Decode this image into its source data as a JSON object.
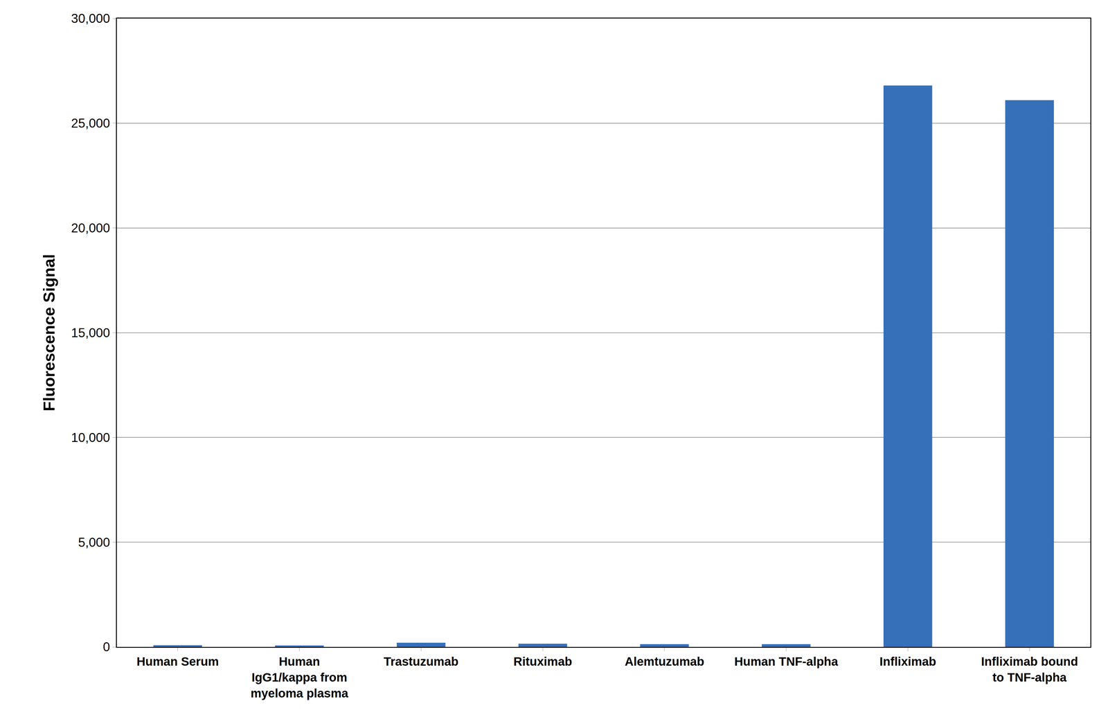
{
  "chart_data": {
    "type": "bar",
    "y_label": "Fluorescence Signal",
    "categories": [
      "Human Serum",
      "Human\nIgG1/kappa from\nmyeloma plasma",
      "Trastuzumab",
      "Rituximab",
      "Alemtuzumab",
      "Human TNF-alpha",
      "Infliximab",
      "Infliximab bound\nto TNF-alpha"
    ],
    "values": [
      80,
      70,
      200,
      150,
      130,
      130,
      26800,
      26100
    ],
    "color": "#3670b8",
    "ylim": [
      0,
      30000
    ],
    "yticks": [
      0,
      {
        "value": 5000,
        "label": "5,000"
      },
      {
        "value": 10000,
        "label": "10,000"
      },
      {
        "value": 15000,
        "label": "15,000"
      },
      {
        "value": 20000,
        "label": "20,000"
      },
      {
        "value": 25000,
        "label": "25,000"
      },
      {
        "value": 30000,
        "label": "30,000"
      }
    ],
    "grid": true
  }
}
